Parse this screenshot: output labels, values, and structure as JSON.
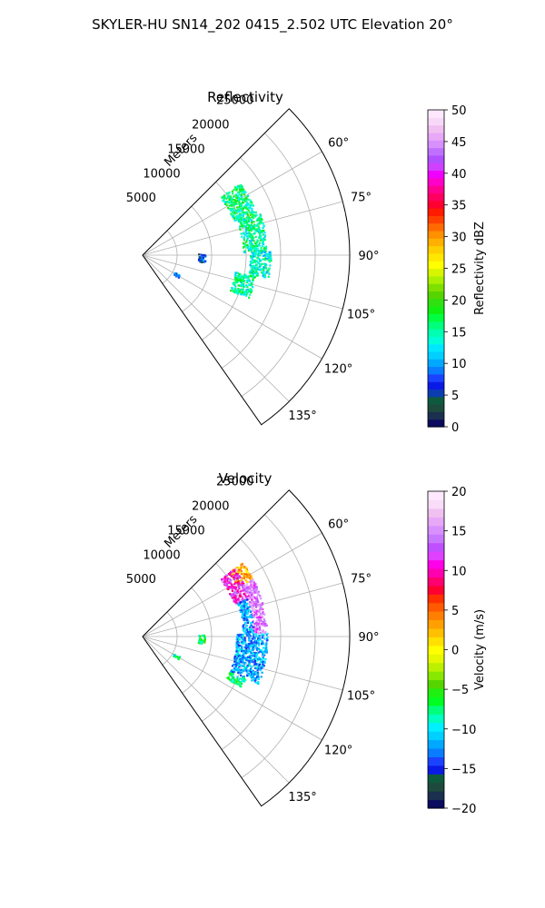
{
  "figure": {
    "suptitle": "SKYLER-HU  SN14_202  0415_2.502 UTC Elevation 20°"
  },
  "chart_data": [
    {
      "type": "heatmap",
      "projection": "polar-sector",
      "title": "Reflectivity",
      "range_label": "Meters",
      "range_ticks": [
        5000,
        10000,
        15000,
        20000,
        25000
      ],
      "range_tick_labels": [
        "5000",
        "10000",
        "15000",
        "20000",
        "25000"
      ],
      "range_max": 30000,
      "azimuth_min_deg": 45,
      "azimuth_max_deg": 145,
      "azimuth_ticks_deg": [
        60,
        75,
        90,
        105,
        120,
        135
      ],
      "azimuth_tick_labels": [
        "60°",
        "75°",
        "90°",
        "105°",
        "120°",
        "135°"
      ],
      "grid": true,
      "colorbar": {
        "label": "Reflectivity dBZ",
        "min": 0,
        "max": 50,
        "ticks": [
          0,
          5,
          10,
          15,
          20,
          25,
          30,
          35,
          40,
          45,
          50
        ],
        "tick_labels": [
          "0",
          "5",
          "10",
          "15",
          "20",
          "25",
          "30",
          "35",
          "40",
          "45",
          "50"
        ]
      },
      "echo_regions": [
        {
          "az": [
            53,
            70
          ],
          "r": [
            14000,
            17500
          ],
          "value": 16
        },
        {
          "az": [
            70,
            88
          ],
          "r": [
            14500,
            18000
          ],
          "value": 15
        },
        {
          "az": [
            88,
            100
          ],
          "r": [
            15500,
            18500
          ],
          "value": 14
        },
        {
          "az": [
            100,
            112
          ],
          "r": [
            13500,
            16500
          ],
          "value": 15
        },
        {
          "az": [
            88,
            96
          ],
          "r": [
            8000,
            9000
          ],
          "value": 7
        },
        {
          "az": [
            118,
            122
          ],
          "r": [
            5000,
            6000
          ],
          "value": 9
        }
      ]
    },
    {
      "type": "heatmap",
      "projection": "polar-sector",
      "title": "Velocity",
      "range_label": "Meters",
      "range_ticks": [
        5000,
        10000,
        15000,
        20000,
        25000
      ],
      "range_tick_labels": [
        "5000",
        "10000",
        "15000",
        "20000",
        "25000"
      ],
      "range_max": 30000,
      "azimuth_min_deg": 45,
      "azimuth_max_deg": 145,
      "azimuth_ticks_deg": [
        60,
        75,
        90,
        105,
        120,
        135
      ],
      "azimuth_tick_labels": [
        "60°",
        "75°",
        "90°",
        "105°",
        "120°",
        "135°"
      ],
      "grid": true,
      "colorbar": {
        "label": "Velocity (m/s)",
        "min": -20,
        "max": 20,
        "ticks": [
          -20,
          -15,
          -10,
          -5,
          0,
          5,
          10,
          15,
          20
        ],
        "tick_labels": [
          "−20",
          "−15",
          "−10",
          "−5",
          "0",
          "5",
          "10",
          "15",
          "20"
        ]
      },
      "echo_regions": [
        {
          "az": [
            53,
            62
          ],
          "r": [
            15500,
            18000
          ],
          "value": 3
        },
        {
          "az": [
            53,
            70
          ],
          "r": [
            14000,
            16500
          ],
          "value": 11
        },
        {
          "az": [
            62,
            88
          ],
          "r": [
            16000,
            18000
          ],
          "value": 14
        },
        {
          "az": [
            70,
            88
          ],
          "r": [
            14500,
            16000
          ],
          "value": -12
        },
        {
          "az": [
            88,
            112
          ],
          "r": [
            13500,
            18000
          ],
          "value": -12
        },
        {
          "az": [
            112,
            117
          ],
          "r": [
            13500,
            16000
          ],
          "value": -8
        },
        {
          "az": [
            88,
            96
          ],
          "r": [
            8000,
            9000
          ],
          "value": -7
        },
        {
          "az": [
            118,
            122
          ],
          "r": [
            5000,
            6000
          ],
          "value": -8
        }
      ]
    }
  ]
}
